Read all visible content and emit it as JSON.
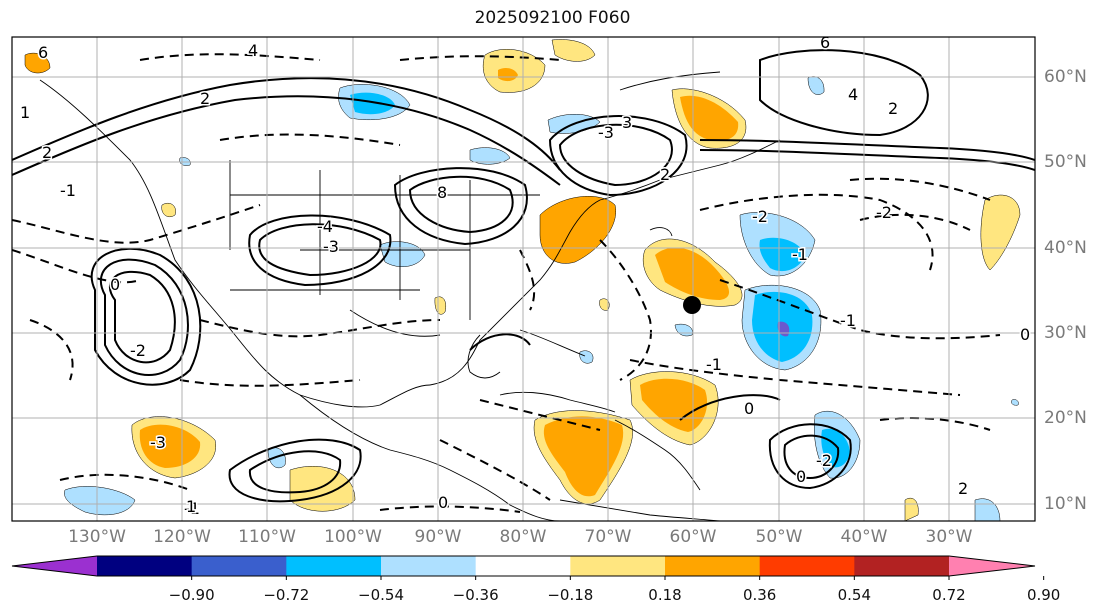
{
  "title": "2025092100 F060",
  "longitude_labels": [
    "130°W",
    "120°W",
    "110°W",
    "100°W",
    "90°W",
    "80°W",
    "70°W",
    "60°W",
    "50°W",
    "40°W",
    "30°W"
  ],
  "latitude_labels": [
    "60°N",
    "50°N",
    "40°N",
    "30°N",
    "20°N",
    "10°N"
  ],
  "colorbar": {
    "tick_labels": [
      "−0.90",
      "−0.72",
      "−0.54",
      "−0.36",
      "−0.18",
      "0.18",
      "0.36",
      "0.54",
      "0.72",
      "0.90"
    ],
    "colors": [
      "#9b30d0",
      "#000080",
      "#3a5fcd",
      "#00bfff",
      "#aee0ff",
      "#ffffff",
      "#ffe680",
      "#ffa500",
      "#ff3c00",
      "#b22222",
      "#ff80b0"
    ]
  },
  "contour_labels": [
    "6",
    "4",
    "2",
    "0",
    "-2",
    "-3",
    "-4",
    "8",
    "6",
    "4",
    "2",
    "-1",
    "-3",
    "3",
    "2",
    "-2",
    "-3",
    "-1",
    "1",
    "0",
    "-2",
    "-1",
    "0",
    "0",
    "2",
    "-2",
    "0",
    "-1",
    "1",
    "2",
    "-1"
  ],
  "colors": {
    "positive_shading": "#ffa500",
    "negative_shading": "#00bfff",
    "contour": "#000000",
    "coastline": "#000000",
    "grid": "#b0b0b0",
    "marker": "#000000"
  }
}
